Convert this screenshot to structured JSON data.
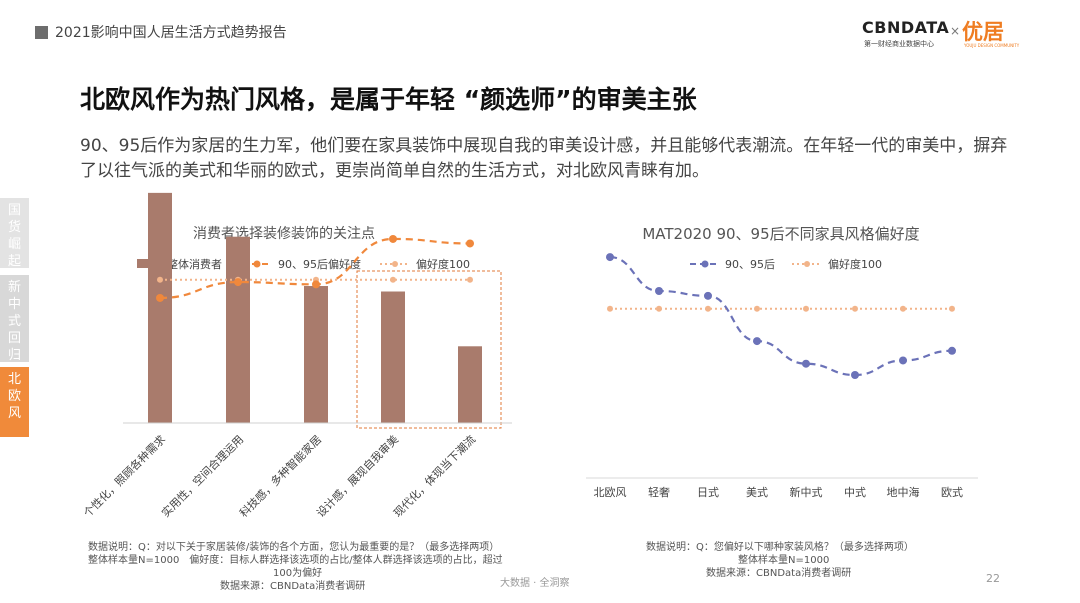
{
  "header": {
    "report_title": "2021影响中国人居生活方式趋势报告"
  },
  "logo": {
    "brand": "CBNDATA",
    "brand_sub": "第一财经商业数据中心",
    "times": "×",
    "partner": "优居",
    "partner_sub": "YOUJU DESIGN COMMUNITY"
  },
  "title": "北欧风作为热门风格，是属于年轻 “颜选师”的审美主张",
  "description": "90、95后作为家居的生力军，他们要在家具装饰中展现自我的审美设计感，并且能够代表潮流。在年轻一代的审美中，摒弃了以往气派的美式和华丽的欧式，更崇尚简单自然的生活方式，对北欧风青睐有加。",
  "side_tabs": [
    {
      "label": [
        "国",
        "货",
        "崛",
        "起"
      ]
    },
    {
      "label": [
        "新",
        "中",
        "式",
        "回",
        "归"
      ]
    },
    {
      "label": [
        "北",
        "欧",
        "风"
      ]
    }
  ],
  "colors": {
    "bar": "#a97b6c",
    "line_left": "#f0883c",
    "baseline": "#f2b48a",
    "line_right": "#6b72b8",
    "baseline_right": "#f2b48a",
    "highlight": "#e07a3a"
  },
  "chart_data": [
    {
      "type": "bar",
      "title": "消费者选择装修装饰的关注点",
      "categories": [
        "个性化，照顾各种需求",
        "实用性，空间合理运用",
        "科技感，多种智能家居",
        "设计感，展现自我审美",
        "现代化，体现当下潮流"
      ],
      "series": [
        {
          "name": "整体消费者",
          "type": "bar",
          "values": [
            42,
            34,
            25,
            24,
            14
          ]
        },
        {
          "name": "90、95后偏好度",
          "type": "line",
          "values": [
            92,
            99,
            98,
            118,
            116
          ]
        },
        {
          "name": "偏好度100",
          "type": "line",
          "values": [
            100,
            100,
            100,
            100,
            100
          ]
        }
      ],
      "ylim_bar": [
        0,
        48
      ],
      "ylim_index": [
        40,
        140
      ],
      "legend": "top",
      "highlight_categories": [
        "设计感，展现自我审美",
        "现代化，体现当下潮流"
      ]
    },
    {
      "type": "line",
      "title": "MAT2020 90、95后不同家具风格偏好度",
      "categories": [
        "北欧风",
        "轻奢",
        "日式",
        "美式",
        "新中式",
        "中式",
        "地中海",
        "欧式"
      ],
      "series": [
        {
          "name": "90、95后",
          "values": [
            132,
            111,
            108,
            80,
            66,
            59,
            68,
            74
          ]
        },
        {
          "name": "偏好度100",
          "values": [
            100,
            100,
            100,
            100,
            100,
            100,
            100,
            100
          ]
        }
      ],
      "ylim": [
        20,
        150
      ],
      "legend": "top"
    }
  ],
  "notes": {
    "left": [
      "数据说明：Q：对以下关于家居装修/装饰的各个方面，您认为最重要的是？（最多选择两项）",
      "整体样本量N=1000　偏好度：目标人群选择该选项的占比/整体人群选择该选项的占比，超过",
      "100为偏好",
      "数据来源：CBNData消费者调研"
    ],
    "right": [
      "数据说明：Q：您偏好以下哪种家装风格？（最多选择两项）",
      "整体样本量N=1000",
      "数据来源：CBNData消费者调研"
    ]
  },
  "footer": "大数据 · 全洞察",
  "page_number": "22"
}
